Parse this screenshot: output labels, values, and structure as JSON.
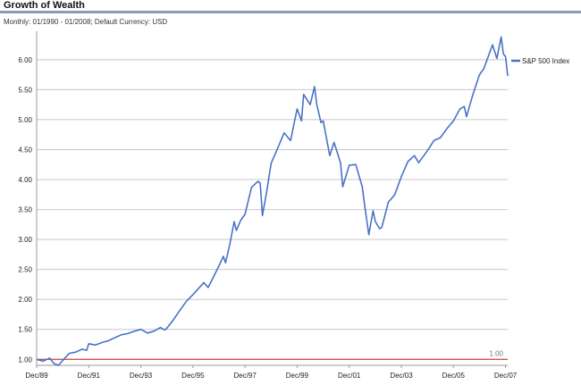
{
  "header": {
    "title": "Growth of Wealth",
    "subtitle": "Monthly: 01/1990 - 01/2008; Default Currency: USD"
  },
  "colors": {
    "series": "#4a72c8",
    "reference": "#cc2222",
    "grid": "#c8c8c8",
    "title_rule": "#8c9bb5"
  },
  "chart_data": {
    "type": "line",
    "title": "Growth of Wealth",
    "subtitle": "Monthly: 01/1990 - 01/2008; Default Currency: USD",
    "xlabel": "",
    "ylabel": "",
    "ylim": [
      0.9,
      6.4
    ],
    "xlim": [
      "1989-12",
      "2008-01"
    ],
    "grid": true,
    "legend_position": "top-right",
    "y_ticks": [
      "1.00",
      "1.50",
      "2.00",
      "2.50",
      "3.00",
      "3.50",
      "4.00",
      "4.50",
      "5.00",
      "5.50",
      "6.00"
    ],
    "x_ticks": [
      "Dec/89",
      "Dec/91",
      "Dec/93",
      "Dec/95",
      "Dec/97",
      "Dec/99",
      "Dec/01",
      "Dec/03",
      "Dec/05",
      "Dec/07"
    ],
    "reference_line": {
      "value": 1.0,
      "label": "1.00"
    },
    "series": [
      {
        "name": "S&P 500 Index",
        "points": [
          [
            "1989-12",
            1.0
          ],
          [
            "1990-03",
            0.97
          ],
          [
            "1990-06",
            1.02
          ],
          [
            "1990-08",
            0.93
          ],
          [
            "1990-10",
            0.9
          ],
          [
            "1990-12",
            0.98
          ],
          [
            "1991-03",
            1.1
          ],
          [
            "1991-06",
            1.12
          ],
          [
            "1991-09",
            1.17
          ],
          [
            "1991-11",
            1.15
          ],
          [
            "1991-12",
            1.26
          ],
          [
            "1992-03",
            1.24
          ],
          [
            "1992-06",
            1.28
          ],
          [
            "1992-09",
            1.31
          ],
          [
            "1992-12",
            1.36
          ],
          [
            "1993-03",
            1.41
          ],
          [
            "1993-06",
            1.43
          ],
          [
            "1993-09",
            1.47
          ],
          [
            "1993-12",
            1.5
          ],
          [
            "1994-03",
            1.44
          ],
          [
            "1994-06",
            1.47
          ],
          [
            "1994-09",
            1.53
          ],
          [
            "1994-11",
            1.49
          ],
          [
            "1994-12",
            1.52
          ],
          [
            "1995-03",
            1.66
          ],
          [
            "1995-06",
            1.82
          ],
          [
            "1995-09",
            1.97
          ],
          [
            "1995-12",
            2.08
          ],
          [
            "1996-03",
            2.2
          ],
          [
            "1996-05",
            2.28
          ],
          [
            "1996-07",
            2.2
          ],
          [
            "1996-09",
            2.34
          ],
          [
            "1996-12",
            2.56
          ],
          [
            "1997-02",
            2.72
          ],
          [
            "1997-03",
            2.61
          ],
          [
            "1997-05",
            2.92
          ],
          [
            "1997-07",
            3.3
          ],
          [
            "1997-08",
            3.15
          ],
          [
            "1997-10",
            3.32
          ],
          [
            "1997-12",
            3.42
          ],
          [
            "1998-03",
            3.87
          ],
          [
            "1998-06",
            3.97
          ],
          [
            "1998-07",
            3.94
          ],
          [
            "1998-08",
            3.4
          ],
          [
            "1998-10",
            3.8
          ],
          [
            "1998-12",
            4.27
          ],
          [
            "1999-03",
            4.52
          ],
          [
            "1999-06",
            4.78
          ],
          [
            "1999-09",
            4.65
          ],
          [
            "1999-12",
            5.18
          ],
          [
            "2000-02",
            4.98
          ],
          [
            "2000-03",
            5.42
          ],
          [
            "2000-06",
            5.25
          ],
          [
            "2000-08",
            5.55
          ],
          [
            "2000-09",
            5.26
          ],
          [
            "2000-11",
            4.95
          ],
          [
            "2000-12",
            4.98
          ],
          [
            "2001-03",
            4.4
          ],
          [
            "2001-05",
            4.62
          ],
          [
            "2001-08",
            4.28
          ],
          [
            "2001-09",
            3.88
          ],
          [
            "2001-12",
            4.24
          ],
          [
            "2002-03",
            4.25
          ],
          [
            "2002-06",
            3.88
          ],
          [
            "2002-07",
            3.6
          ],
          [
            "2002-09",
            3.08
          ],
          [
            "2002-11",
            3.48
          ],
          [
            "2002-12",
            3.3
          ],
          [
            "2003-02",
            3.18
          ],
          [
            "2003-03",
            3.2
          ],
          [
            "2003-06",
            3.62
          ],
          [
            "2003-09",
            3.75
          ],
          [
            "2003-12",
            4.05
          ],
          [
            "2004-03",
            4.3
          ],
          [
            "2004-06",
            4.4
          ],
          [
            "2004-08",
            4.28
          ],
          [
            "2004-12",
            4.48
          ],
          [
            "2005-03",
            4.65
          ],
          [
            "2005-06",
            4.7
          ],
          [
            "2005-09",
            4.85
          ],
          [
            "2005-12",
            4.98
          ],
          [
            "2006-03",
            5.18
          ],
          [
            "2006-05",
            5.22
          ],
          [
            "2006-06",
            5.05
          ],
          [
            "2006-09",
            5.42
          ],
          [
            "2006-12",
            5.75
          ],
          [
            "2007-02",
            5.85
          ],
          [
            "2007-06",
            6.25
          ],
          [
            "2007-08",
            6.02
          ],
          [
            "2007-10",
            6.38
          ],
          [
            "2007-11",
            6.1
          ],
          [
            "2007-12",
            6.05
          ],
          [
            "2008-01",
            5.73
          ]
        ]
      }
    ]
  }
}
